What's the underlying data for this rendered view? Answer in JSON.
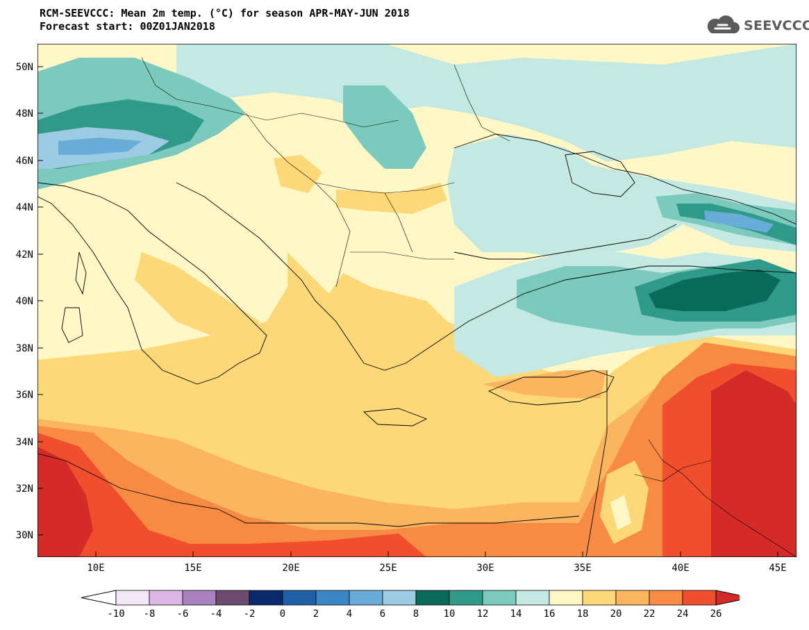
{
  "header": {
    "title": "RCM-SEEVCCC: Mean 2m temp. (°C) for season APR-MAY-JUN 2018",
    "subtitle": "Forecast start: 00Z01JAN2018"
  },
  "logo": {
    "text": "SEEVCCC",
    "icon": "cloud-icon"
  },
  "map": {
    "lat_range": [
      29,
      51
    ],
    "lon_range": [
      7,
      46
    ],
    "lat_ticks": [
      "30N",
      "32N",
      "34N",
      "36N",
      "38N",
      "40N",
      "42N",
      "44N",
      "46N",
      "48N",
      "50N"
    ],
    "lon_ticks": [
      "10E",
      "15E",
      "20E",
      "25E",
      "30E",
      "35E",
      "40E",
      "45E"
    ]
  },
  "colorbar": {
    "labels": [
      "-10",
      "-8",
      "-6",
      "-4",
      "-2",
      "0",
      "2",
      "4",
      "6",
      "8",
      "10",
      "12",
      "14",
      "16",
      "18",
      "20",
      "22",
      "24",
      "26"
    ],
    "colors": [
      "#f3e8f7",
      "#dcb7e6",
      "#a982bd",
      "#6b4b6b",
      "#0b2a6b",
      "#1f5fa5",
      "#3a87c3",
      "#6aacd8",
      "#9dcbe4",
      "#0a6a5a",
      "#2f9a8a",
      "#7ccabe",
      "#c4e9e2",
      "#fff8c6",
      "#fdd878",
      "#fbb55e",
      "#f88b44",
      "#f04f2e",
      "#d42a28"
    ],
    "low_color": "#ffffff",
    "high_color": "#d42a28"
  }
}
